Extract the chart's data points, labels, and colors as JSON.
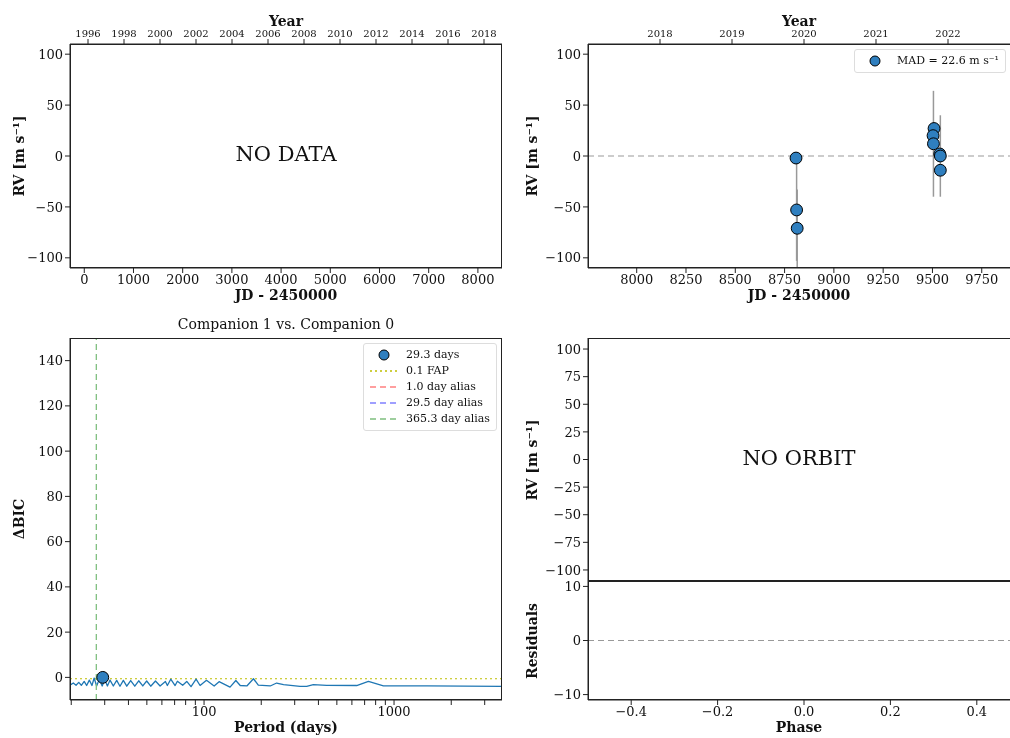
{
  "chart_data": [
    {
      "type": "scatter",
      "xlabel": "JD - 2450000",
      "ylabel": "RV [m s⁻¹]",
      "x2label": "Year",
      "xlim": [
        -290,
        8490
      ],
      "xticks": [
        0,
        1000,
        2000,
        3000,
        4000,
        5000,
        6000,
        7000,
        8000
      ],
      "x2lim": [
        1995.0,
        2019.0
      ],
      "x2ticks": [
        1996,
        1998,
        2000,
        2002,
        2004,
        2006,
        2008,
        2010,
        2012,
        2014,
        2016,
        2018
      ],
      "ylim": [
        -110,
        110
      ],
      "yticks": [
        -100,
        -50,
        0,
        50,
        100
      ],
      "annotations": [
        "NO DATA"
      ]
    },
    {
      "type": "scatter",
      "xlabel": "JD - 2450000",
      "ylabel": "RV [m s⁻¹]",
      "x2label": "Year",
      "marker": "circle",
      "legend": "top right",
      "series": [
        {
          "name": "MAD = 22.6 m s⁻¹",
          "color": "#2f7fbf",
          "x": [
            8808,
            8811,
            8814,
            9508,
            9503,
            9505,
            9537,
            9540,
            9540
          ],
          "values": [
            -2,
            -53,
            -71,
            27,
            20,
            12,
            2,
            0,
            -14
          ],
          "errors": [
            null,
            50,
            38,
            null,
            null,
            52,
            null,
            40,
            null
          ]
        }
      ],
      "ref_lines": [
        {
          "axis": "y",
          "value": 0,
          "color": "#999999",
          "line_style": "dashed"
        }
      ],
      "xlim": [
        7753,
        9944
      ],
      "xticks": [
        8000,
        8250,
        8500,
        8750,
        9000,
        9250,
        9500,
        9750
      ],
      "x2lim": [
        2017.0,
        2023.0
      ],
      "x2ticks": [
        2018,
        2019,
        2020,
        2021,
        2022
      ],
      "ylim": [
        -110,
        110
      ],
      "yticks": [
        -100,
        -50,
        0,
        50,
        100
      ]
    },
    {
      "type": "line",
      "title": "Companion 1 vs. Companion 0",
      "xlabel": "Period (days)",
      "ylabel": "ΔBIC",
      "log": "x",
      "legend": "top right",
      "series": [
        {
          "color": "#1f77b4",
          "x": [
            19.9,
            20.5,
            21.2,
            21.9,
            22.6,
            23.4,
            24.1,
            24.9,
            25.7,
            26.4,
            27.2,
            28.1,
            29.1,
            30.0,
            31.0,
            32.0,
            33.3,
            34.7,
            36.1,
            37.6,
            39.2,
            41.1,
            43.2,
            45.3,
            47.6,
            49.9,
            52.4,
            55.5,
            58.7,
            62.6,
            64.1,
            66.8,
            70.4,
            72.4,
            77.2,
            81.1,
            85.4,
            90.8,
            95.3,
            103,
            113,
            120,
            137,
            147,
            155,
            168,
            182,
            193,
            223,
            241,
            262,
            320,
            347,
            376,
            442,
            636,
            733,
            879,
            1490,
            3690
          ],
          "values": [
            -3.2,
            -2.5,
            -3.5,
            -2.2,
            -3.5,
            -1.8,
            -3.6,
            -1.2,
            -3.6,
            -0.3,
            -3.8,
            -0.8,
            -3.8,
            -1.0,
            -3.8,
            -1.2,
            -3.8,
            -1.3,
            -3.9,
            -1.3,
            -3.9,
            -1.4,
            -3.9,
            -1.5,
            -3.8,
            -1.6,
            -3.9,
            -1.6,
            -3.8,
            -1.8,
            -3.6,
            -0.8,
            -3.6,
            -1.7,
            -3.5,
            -1.8,
            -4.1,
            -0.8,
            -3.6,
            -1.3,
            -3.8,
            -1.9,
            -4.3,
            -1.4,
            -3.6,
            -3.8,
            -0.6,
            -3.4,
            -3.8,
            -2.5,
            -3.2,
            -4.0,
            -4.0,
            -3.2,
            -3.5,
            -3.6,
            -1.8,
            -3.8,
            -3.8,
            -4.0
          ]
        },
        {
          "type": "scatter",
          "name": "29.3 days",
          "marker": "circle",
          "color": "#2f7fbf",
          "x": [
            29.3
          ],
          "values": [
            0
          ]
        },
        {
          "type": "line",
          "name": "1.0 day alias",
          "color": "#ff8080",
          "line_style": "dashed"
        },
        {
          "type": "line",
          "name": "29.5 day alias",
          "color": "#8080ff",
          "line_style": "dashed"
        },
        {
          "type": "line",
          "name": "365.3 day alias",
          "color": "#7fbf7f",
          "line_style": "dashed",
          "x": [
            27.1,
            27.1
          ],
          "values": [
            -10,
            150
          ]
        }
      ],
      "ref_lines": [
        {
          "axis": "y",
          "value": -0.6,
          "label": "0.1 FAP",
          "color": "#bfbf00",
          "line_style": "dotted"
        }
      ],
      "xlim": [
        19.7,
        3700
      ],
      "xticks": [
        {
          "value": 20,
          "label": null
        },
        {
          "value": 30,
          "label": null
        },
        {
          "value": 40,
          "label": null
        },
        {
          "value": 50,
          "label": null
        },
        {
          "value": 60,
          "label": null
        },
        {
          "value": 70,
          "label": null
        },
        {
          "value": 80,
          "label": null
        },
        {
          "value": 90,
          "label": null
        },
        100,
        {
          "value": 200,
          "label": null
        },
        {
          "value": 300,
          "label": null
        },
        {
          "value": 400,
          "label": null
        },
        {
          "value": 500,
          "label": null
        },
        {
          "value": 600,
          "label": null
        },
        {
          "value": 700,
          "label": null
        },
        {
          "value": 800,
          "label": null
        },
        {
          "value": 900,
          "label": null
        },
        1000,
        {
          "value": 2000,
          "label": null
        },
        {
          "value": 3000,
          "label": null
        }
      ],
      "ylim": [
        -10,
        150
      ],
      "yticks": [
        0,
        20,
        40,
        60,
        80,
        100,
        120,
        140
      ]
    },
    {
      "type": "scatter",
      "ylabel": "RV [m s⁻¹]",
      "tick_labels": "y",
      "xlim": [
        -0.5,
        0.5
      ],
      "xticks": [
        -0.4,
        -0.2,
        0,
        0.2,
        0.4
      ],
      "ylim": [
        -110,
        110
      ],
      "yticks": [
        -100,
        -75,
        -50,
        -25,
        0,
        25,
        50,
        75,
        100
      ],
      "annotations": [
        "NO ORBIT"
      ]
    },
    {
      "type": "scatter",
      "xlabel": "Phase",
      "ylabel": "Residuals",
      "xlim": [
        -0.5,
        0.5
      ],
      "xticks": [
        -0.4,
        -0.2,
        {
          "value": 0,
          "label": "0.0"
        },
        0.2,
        0.4
      ],
      "ylim": [
        -11,
        11
      ],
      "yticks": [
        -10,
        0,
        10
      ],
      "ref_lines": [
        {
          "axis": "y",
          "value": 0,
          "color": "#999999",
          "line_style": "dashed"
        }
      ]
    }
  ]
}
